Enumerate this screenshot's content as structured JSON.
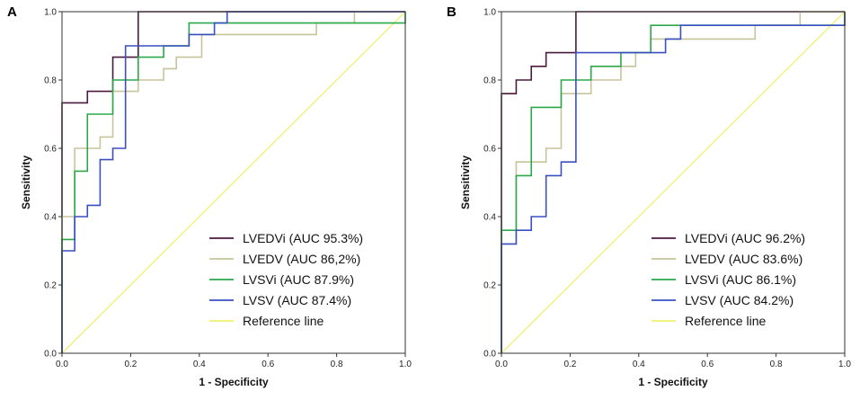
{
  "chart_data": [
    {
      "panel_label": "A",
      "type": "line",
      "xlabel": "1 - Specificity",
      "ylabel": "Sensitivity",
      "xlim": [
        0,
        1
      ],
      "ylim": [
        0,
        1
      ],
      "xticks": [
        "0.0",
        "0.2",
        "0.4",
        "0.6",
        "0.8",
        "1.0"
      ],
      "yticks": [
        "0.0",
        "0.2",
        "0.4",
        "0.6",
        "0.8",
        "1.0"
      ],
      "legend_position": "bottom-right",
      "series": [
        {
          "name": "LVEDVi (AUC 95.3%)",
          "color": "#4a1a3d",
          "points": [
            [
              0,
              0
            ],
            [
              0,
              0.733
            ],
            [
              0.074,
              0.733
            ],
            [
              0.074,
              0.767
            ],
            [
              0.148,
              0.767
            ],
            [
              0.148,
              0.867
            ],
            [
              0.222,
              0.867
            ],
            [
              0.222,
              1.0
            ],
            [
              1.0,
              1.0
            ]
          ]
        },
        {
          "name": "LVEDV (AUC 86,2%)",
          "color": "#c8c49a",
          "points": [
            [
              0,
              0
            ],
            [
              0,
              0.4
            ],
            [
              0.037,
              0.4
            ],
            [
              0.037,
              0.6
            ],
            [
              0.111,
              0.6
            ],
            [
              0.111,
              0.633
            ],
            [
              0.148,
              0.633
            ],
            [
              0.148,
              0.767
            ],
            [
              0.222,
              0.767
            ],
            [
              0.222,
              0.8
            ],
            [
              0.296,
              0.8
            ],
            [
              0.296,
              0.833
            ],
            [
              0.333,
              0.833
            ],
            [
              0.333,
              0.867
            ],
            [
              0.407,
              0.867
            ],
            [
              0.407,
              0.933
            ],
            [
              0.741,
              0.933
            ],
            [
              0.741,
              0.967
            ],
            [
              0.852,
              0.967
            ],
            [
              0.852,
              1.0
            ],
            [
              1.0,
              1.0
            ]
          ]
        },
        {
          "name": "LVSVi (AUC 87.9%)",
          "color": "#2aa84a",
          "points": [
            [
              0,
              0
            ],
            [
              0,
              0.333
            ],
            [
              0.037,
              0.333
            ],
            [
              0.037,
              0.533
            ],
            [
              0.074,
              0.533
            ],
            [
              0.074,
              0.7
            ],
            [
              0.148,
              0.7
            ],
            [
              0.148,
              0.8
            ],
            [
              0.222,
              0.8
            ],
            [
              0.222,
              0.867
            ],
            [
              0.296,
              0.867
            ],
            [
              0.296,
              0.9
            ],
            [
              0.37,
              0.9
            ],
            [
              0.37,
              0.967
            ],
            [
              1.0,
              0.967
            ],
            [
              1.0,
              1.0
            ]
          ]
        },
        {
          "name": "LVSV (AUC 87.4%)",
          "color": "#3a4fc0",
          "points": [
            [
              0,
              0
            ],
            [
              0,
              0.3
            ],
            [
              0.037,
              0.3
            ],
            [
              0.037,
              0.4
            ],
            [
              0.074,
              0.4
            ],
            [
              0.074,
              0.433
            ],
            [
              0.111,
              0.433
            ],
            [
              0.111,
              0.567
            ],
            [
              0.148,
              0.567
            ],
            [
              0.148,
              0.6
            ],
            [
              0.185,
              0.6
            ],
            [
              0.185,
              0.9
            ],
            [
              0.37,
              0.9
            ],
            [
              0.37,
              0.933
            ],
            [
              0.444,
              0.933
            ],
            [
              0.444,
              0.967
            ],
            [
              0.481,
              0.967
            ],
            [
              0.481,
              1.0
            ],
            [
              1.0,
              1.0
            ]
          ]
        },
        {
          "name": "Reference line",
          "color": "#f0f070",
          "points": [
            [
              0,
              0
            ],
            [
              1,
              1
            ]
          ]
        }
      ]
    },
    {
      "panel_label": "B",
      "type": "line",
      "xlabel": "1 - Specificity",
      "ylabel": "Sensitivity",
      "xlim": [
        0,
        1
      ],
      "ylim": [
        0,
        1
      ],
      "xticks": [
        "0.0",
        "0.2",
        "0.4",
        "0.6",
        "0.8",
        "1.0"
      ],
      "yticks": [
        "0.0",
        "0.2",
        "0.4",
        "0.6",
        "0.8",
        "1.0"
      ],
      "legend_position": "bottom-right",
      "series": [
        {
          "name": "LVEDVi (AUC 96.2%)",
          "color": "#4a1a3d",
          "points": [
            [
              0,
              0
            ],
            [
              0,
              0.76
            ],
            [
              0.043,
              0.76
            ],
            [
              0.043,
              0.8
            ],
            [
              0.087,
              0.8
            ],
            [
              0.087,
              0.84
            ],
            [
              0.13,
              0.84
            ],
            [
              0.13,
              0.88
            ],
            [
              0.217,
              0.88
            ],
            [
              0.217,
              1.0
            ],
            [
              1.0,
              1.0
            ]
          ]
        },
        {
          "name": "LVEDV (AUC 83.6%)",
          "color": "#c8c49a",
          "points": [
            [
              0,
              0
            ],
            [
              0,
              0.32
            ],
            [
              0.043,
              0.32
            ],
            [
              0.043,
              0.56
            ],
            [
              0.13,
              0.56
            ],
            [
              0.13,
              0.6
            ],
            [
              0.174,
              0.6
            ],
            [
              0.174,
              0.76
            ],
            [
              0.261,
              0.76
            ],
            [
              0.261,
              0.8
            ],
            [
              0.348,
              0.8
            ],
            [
              0.348,
              0.84
            ],
            [
              0.391,
              0.84
            ],
            [
              0.391,
              0.88
            ],
            [
              0.435,
              0.88
            ],
            [
              0.435,
              0.92
            ],
            [
              0.739,
              0.92
            ],
            [
              0.739,
              0.96
            ],
            [
              0.87,
              0.96
            ],
            [
              0.87,
              1.0
            ],
            [
              1.0,
              1.0
            ]
          ]
        },
        {
          "name": "LVSVi (AUC 86.1%)",
          "color": "#2aa84a",
          "points": [
            [
              0,
              0
            ],
            [
              0,
              0.36
            ],
            [
              0.043,
              0.36
            ],
            [
              0.043,
              0.52
            ],
            [
              0.087,
              0.52
            ],
            [
              0.087,
              0.72
            ],
            [
              0.174,
              0.72
            ],
            [
              0.174,
              0.8
            ],
            [
              0.261,
              0.8
            ],
            [
              0.261,
              0.84
            ],
            [
              0.348,
              0.84
            ],
            [
              0.348,
              0.88
            ],
            [
              0.435,
              0.88
            ],
            [
              0.435,
              0.96
            ],
            [
              1.0,
              0.96
            ],
            [
              1.0,
              1.0
            ]
          ]
        },
        {
          "name": "LVSV (AUC 84.2%)",
          "color": "#3a4fc0",
          "points": [
            [
              0,
              0
            ],
            [
              0,
              0.32
            ],
            [
              0.043,
              0.32
            ],
            [
              0.043,
              0.36
            ],
            [
              0.087,
              0.36
            ],
            [
              0.087,
              0.4
            ],
            [
              0.13,
              0.4
            ],
            [
              0.13,
              0.52
            ],
            [
              0.174,
              0.52
            ],
            [
              0.174,
              0.56
            ],
            [
              0.217,
              0.56
            ],
            [
              0.217,
              0.88
            ],
            [
              0.478,
              0.88
            ],
            [
              0.478,
              0.92
            ],
            [
              0.522,
              0.92
            ],
            [
              0.522,
              0.96
            ],
            [
              1.0,
              0.96
            ],
            [
              1.0,
              1.0
            ]
          ]
        },
        {
          "name": "Reference line",
          "color": "#f0f070",
          "points": [
            [
              0,
              0
            ],
            [
              1,
              1
            ]
          ]
        }
      ]
    }
  ]
}
